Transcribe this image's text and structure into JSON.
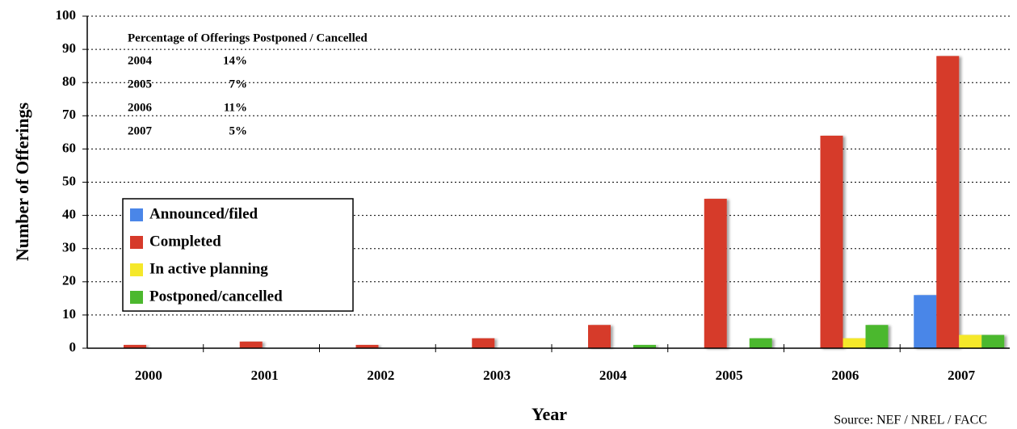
{
  "chart_data": {
    "type": "bar",
    "y_label": "Number of Offerings",
    "x_label": "Year",
    "source": "Source: NEF / NREL / FACC",
    "annotation": {
      "title": "Percentage of Offerings Postponed / Cancelled",
      "rows": [
        [
          "2004",
          "14%"
        ],
        [
          "2005",
          "7%"
        ],
        [
          "2006",
          "11%"
        ],
        [
          "2007",
          "5%"
        ]
      ]
    },
    "categories": [
      "2000",
      "2001",
      "2002",
      "2003",
      "2004",
      "2005",
      "2006",
      "2007"
    ],
    "series": [
      {
        "name": "Announced/filed",
        "color": "#4a86e8",
        "values": [
          0,
          0,
          0,
          0,
          0,
          0,
          0,
          16
        ]
      },
      {
        "name": "Completed",
        "color": "#d63a2a",
        "values": [
          1,
          2,
          1,
          3,
          7,
          45,
          64,
          88
        ]
      },
      {
        "name": "In active planning",
        "color": "#f5e82a",
        "values": [
          0,
          0,
          0,
          0,
          0,
          0,
          3,
          4
        ]
      },
      {
        "name": "Postponed/cancelled",
        "color": "#4cb82e",
        "values": [
          0,
          0,
          0,
          0,
          1,
          3,
          7,
          4
        ]
      }
    ],
    "ylim": [
      0,
      100
    ],
    "yticks": [
      0,
      10,
      20,
      30,
      40,
      50,
      60,
      70,
      80,
      90,
      100
    ],
    "grid": true,
    "legend": "center left"
  }
}
